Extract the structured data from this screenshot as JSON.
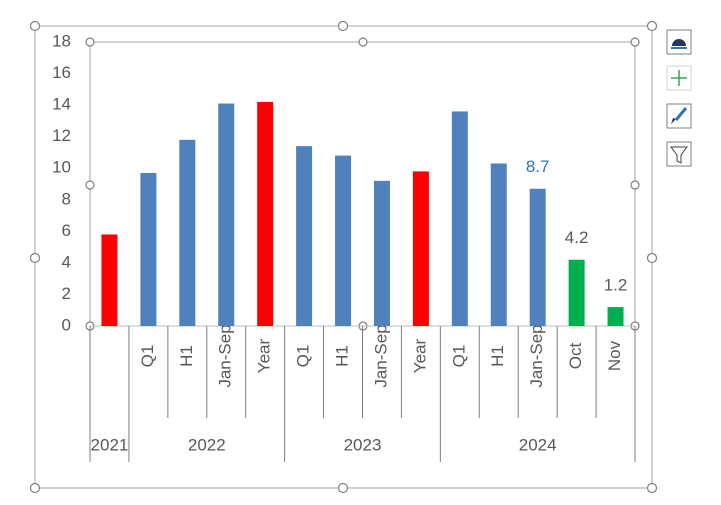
{
  "chart_data": {
    "type": "bar",
    "categories": [
      null,
      "Q1",
      "H1",
      "Jan-Sep",
      "Year",
      "Q1",
      "H1",
      "Jan-Sep",
      "Year",
      "Q1",
      "H1",
      "Jan-Sep",
      "Oct",
      "Nov"
    ],
    "category_groups": [
      "2021",
      "2022",
      null,
      null,
      null,
      "2023",
      null,
      null,
      null,
      "2024",
      null,
      null,
      null,
      null
    ],
    "values": [
      5.8,
      9.7,
      11.8,
      14.1,
      14.2,
      11.4,
      10.8,
      9.2,
      9.8,
      13.6,
      10.3,
      8.7,
      4.2,
      1.2
    ],
    "colors": [
      "#ff0000",
      "#4f81bd",
      "#4f81bd",
      "#4f81bd",
      "#ff0000",
      "#4f81bd",
      "#4f81bd",
      "#4f81bd",
      "#ff0000",
      "#4f81bd",
      "#4f81bd",
      "#4f81bd",
      "#00b050",
      "#00b050"
    ],
    "label_colors": [
      null,
      null,
      null,
      null,
      null,
      null,
      null,
      null,
      null,
      null,
      null,
      "#2e75b6",
      "#595959",
      "#595959"
    ],
    "ylim": [
      0,
      18
    ],
    "yticks": [
      0,
      2,
      4,
      6,
      8,
      10,
      12,
      14,
      16,
      18
    ],
    "grid": false
  }
}
